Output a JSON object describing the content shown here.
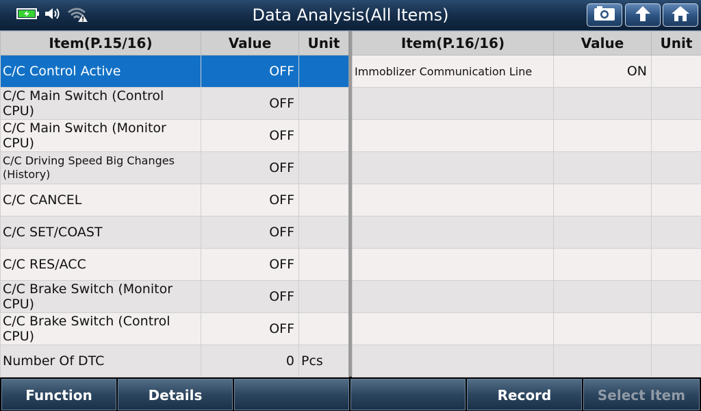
{
  "header": {
    "title": "Data Analysis(All Items)",
    "status_icons": [
      "battery-charging-icon",
      "speaker-icon",
      "wifi-warning-icon"
    ],
    "buttons": [
      {
        "name": "screenshot-button",
        "icon": "camera-icon"
      },
      {
        "name": "back-button",
        "icon": "up-arrow-icon"
      },
      {
        "name": "home-button",
        "icon": "home-icon"
      }
    ]
  },
  "left_table": {
    "columns": [
      "Item(P.15/16)",
      "Value",
      "Unit"
    ],
    "rows": [
      {
        "item": "C/C Control Active",
        "value": "OFF",
        "unit": ""
      },
      {
        "item": "C/C Main Switch (Control CPU)",
        "value": "OFF",
        "unit": ""
      },
      {
        "item": "C/C Main Switch (Monitor CPU)",
        "value": "OFF",
        "unit": ""
      },
      {
        "item": "C/C Driving Speed Big Changes (History)",
        "value": "OFF",
        "unit": ""
      },
      {
        "item": "C/C CANCEL",
        "value": "OFF",
        "unit": ""
      },
      {
        "item": "C/C SET/COAST",
        "value": "OFF",
        "unit": ""
      },
      {
        "item": "C/C RES/ACC",
        "value": "OFF",
        "unit": ""
      },
      {
        "item": "C/C Brake Switch (Monitor CPU)",
        "value": "OFF",
        "unit": ""
      },
      {
        "item": "C/C Brake Switch (Control CPU)",
        "value": "OFF",
        "unit": ""
      },
      {
        "item": "Number Of DTC",
        "value": "0",
        "unit": "Pcs"
      }
    ]
  },
  "right_table": {
    "columns": [
      "Item(P.16/16)",
      "Value",
      "Unit"
    ],
    "rows": [
      {
        "item": "Immoblizer Communication Line",
        "value": "ON",
        "unit": ""
      },
      {
        "item": "",
        "value": "",
        "unit": ""
      },
      {
        "item": "",
        "value": "",
        "unit": ""
      },
      {
        "item": "",
        "value": "",
        "unit": ""
      },
      {
        "item": "",
        "value": "",
        "unit": ""
      },
      {
        "item": "",
        "value": "",
        "unit": ""
      },
      {
        "item": "",
        "value": "",
        "unit": ""
      },
      {
        "item": "",
        "value": "",
        "unit": ""
      },
      {
        "item": "",
        "value": "",
        "unit": ""
      },
      {
        "item": "",
        "value": "",
        "unit": ""
      }
    ]
  },
  "footer": {
    "buttons": [
      "Function",
      "Details",
      "",
      "",
      "Record",
      "Select Item"
    ]
  },
  "colors": {
    "selection": "#1271c6",
    "header_bg": "#17304e",
    "battery": "#37d431"
  }
}
